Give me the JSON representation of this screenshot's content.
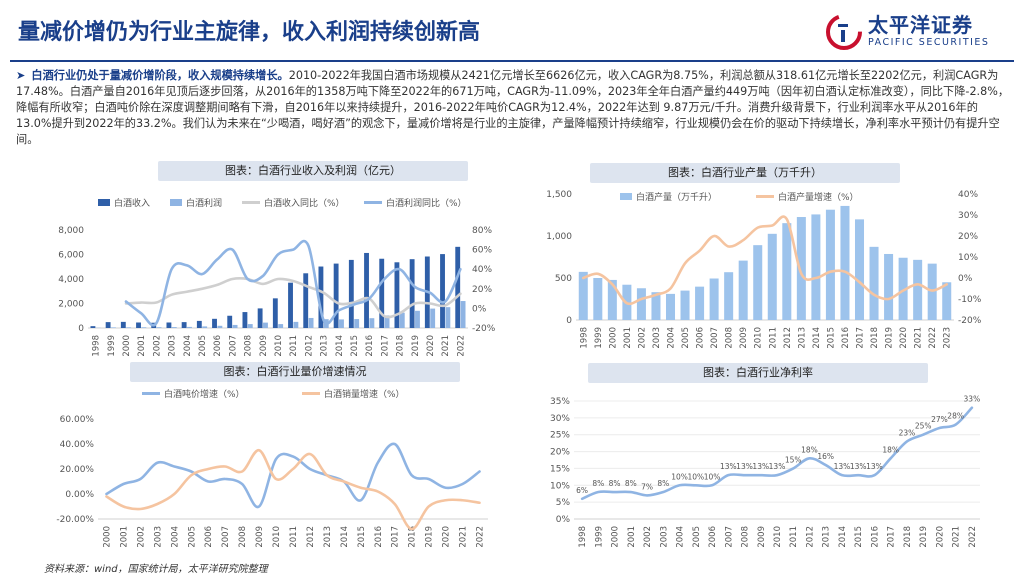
{
  "header": {
    "title": "量减价增仍为行业主旋律，收入利润持续创新高",
    "logo_cn": "太平洋证券",
    "logo_en": "PACIFIC SECURITIES"
  },
  "summary": {
    "lead": "白酒行业仍处于量减价增阶段，收入规模持续增长。",
    "body": "2010-2022年我国白酒市场规模从2421亿元增长至6626亿元，收入CAGR为8.75%，利润总额从318.61亿元增长至2202亿元，利润CAGR为17.48%。白酒产量自2016年见顶后逐步回落，从2016年的1358万吨下降至2022年的671万吨，CAGR为-11.09%，2023年全年白酒产量约449万吨（因年初白酒认定标准改变），同比下降-2.8%，降幅有所收窄；白酒吨价除在深度调整期间略有下滑，自2016年以来持续提升，2016-2022年吨价CAGR为12.4%，2022年达到 9.87万元/千升。消费升级背景下，行业利润率水平从2016年的13.0%提升到2022年的33.2%。我们认为未来在“少喝酒，喝好酒”的观念下，量减价增将是行业的主旋律，产量降幅预计持续缩窄，行业规模仍会在价的驱动下持续增长，净利率水平预计仍有提升空间。"
  },
  "captions": {
    "c1": "图表：白酒行业收入及利润（亿元）",
    "c2": "图表：白酒行业产量（万千升）",
    "c3": "图表：白酒行业量价增速情况",
    "c4": "图表：白酒行业净利率"
  },
  "source": "资料来源：wind，国家统计局，太平洋研究院整理",
  "colors": {
    "brand": "#1a3f8a",
    "revenue_bar": "#2f5fa8",
    "profit_bar": "#8fb4e3",
    "revenue_yoy": "#cfcfcf",
    "profit_yoy": "#8fb4e3",
    "output_bar": "#9dc3ec",
    "output_yoy": "#f5c4a0",
    "price_yoy": "#8fb4e3",
    "volume_yoy": "#f5c4a0",
    "margin_line": "#8fb4e3",
    "cap_bg": "#dde4ef"
  },
  "chart_data": [
    {
      "type": "bar",
      "title": "图表：白酒行业收入及利润（亿元）",
      "categories": [
        "1998",
        "1999",
        "2000",
        "2001",
        "2002",
        "2003",
        "2004",
        "2005",
        "2006",
        "2007",
        "2008",
        "2009",
        "2010",
        "2011",
        "2012",
        "2013",
        "2014",
        "2015",
        "2016",
        "2017",
        "2018",
        "2019",
        "2020",
        "2021",
        "2022"
      ],
      "series": [
        {
          "name": "白酒收入",
          "kind": "bar",
          "axis": "left",
          "values": [
            150,
            480,
            500,
            450,
            430,
            450,
            480,
            580,
            750,
            1000,
            1300,
            1600,
            2421,
            3700,
            4466,
            5018,
            5258,
            5559,
            6126,
            5654,
            5364,
            5618,
            5836,
            6033,
            6626
          ]
        },
        {
          "name": "白酒利润",
          "kind": "bar",
          "axis": "left",
          "values": [
            20,
            50,
            55,
            60,
            65,
            75,
            90,
            130,
            180,
            250,
            320,
            440,
            319,
            500,
            820,
            720,
            700,
            730,
            800,
            1028,
            1250,
            1404,
            1585,
            1701,
            2202
          ]
        },
        {
          "name": "白酒收入同比（%）",
          "kind": "line",
          "axis": "right",
          "values": [
            null,
            null,
            5,
            6,
            6,
            14,
            17,
            20,
            24,
            30,
            30,
            25,
            30,
            28,
            22,
            16,
            5,
            6,
            10,
            -8,
            -5,
            5,
            5,
            3,
            15
          ]
        },
        {
          "name": "白酒利润同比（%）",
          "kind": "line",
          "axis": "right",
          "values": [
            null,
            null,
            7,
            -5,
            -15,
            40,
            44,
            35,
            50,
            60,
            30,
            33,
            55,
            60,
            64,
            -12,
            -2,
            4,
            10,
            30,
            40,
            22,
            16,
            7,
            40
          ]
        }
      ],
      "ylim": [
        0,
        8000
      ],
      "ylim_right": [
        -20,
        80
      ],
      "yticks": [
        "0",
        "2,000",
        "4,000",
        "6,000",
        "8,000"
      ],
      "yticks_right": [
        "-20%",
        "0%",
        "20%",
        "40%",
        "60%",
        "80%"
      ],
      "legend": "top"
    },
    {
      "type": "bar",
      "title": "图表：白酒行业产量（万千升）",
      "categories": [
        "1998",
        "1999",
        "2000",
        "2001",
        "2002",
        "2003",
        "2004",
        "2005",
        "2006",
        "2007",
        "2008",
        "2009",
        "2010",
        "2011",
        "2012",
        "2013",
        "2014",
        "2015",
        "2016",
        "2017",
        "2018",
        "2019",
        "2020",
        "2021",
        "2022",
        "2023"
      ],
      "series": [
        {
          "name": "白酒产量（万千升）",
          "kind": "bar",
          "axis": "left",
          "values": [
            573,
            500,
            477,
            420,
            378,
            331,
            311,
            350,
            397,
            494,
            569,
            707,
            891,
            1026,
            1153,
            1226,
            1257,
            1313,
            1358,
            1198,
            871,
            786,
            741,
            716,
            671,
            449
          ]
        },
        {
          "name": "白酒产量增速（%）",
          "kind": "line",
          "axis": "right",
          "values": [
            0,
            2,
            -3,
            -12,
            -10,
            -8,
            -5,
            7,
            13,
            20,
            15,
            18,
            24,
            25,
            28,
            2,
            0,
            3,
            3,
            -2,
            -8,
            -10,
            -6,
            -3,
            -6,
            -3
          ]
        }
      ],
      "ylim": [
        0,
        1500
      ],
      "ylim_right": [
        -20,
        40
      ],
      "yticks": [
        "0",
        "500",
        "1,000",
        "1,500"
      ],
      "yticks_right": [
        "-20%",
        "-10%",
        "0%",
        "10%",
        "20%",
        "30%",
        "40%"
      ],
      "legend": "top"
    },
    {
      "type": "line",
      "title": "图表：白酒行业量价增速情况",
      "categories": [
        "2000",
        "2001",
        "2002",
        "2003",
        "2004",
        "2005",
        "2006",
        "2007",
        "2008",
        "2009",
        "2010",
        "2011",
        "2012",
        "2013",
        "2014",
        "2015",
        "2016",
        "2017",
        "2018",
        "2019",
        "2020",
        "2021",
        "2022"
      ],
      "series": [
        {
          "name": "白酒吨价增速（%）",
          "values": [
            0,
            8,
            12,
            25,
            22,
            18,
            10,
            12,
            8,
            -10,
            28,
            30,
            20,
            15,
            10,
            -5,
            25,
            40,
            15,
            12,
            5,
            8,
            18
          ]
        },
        {
          "name": "白酒销量增速（%）",
          "values": [
            -2,
            -10,
            -12,
            -8,
            0,
            15,
            20,
            22,
            18,
            35,
            12,
            20,
            32,
            15,
            10,
            5,
            2,
            -8,
            -28,
            -10,
            -5,
            -5,
            -7
          ]
        }
      ],
      "ylim": [
        -20,
        60
      ],
      "yticks": [
        "-20.00%",
        "0.00%",
        "20.00%",
        "40.00%",
        "60.00%"
      ],
      "legend": "top"
    },
    {
      "type": "line",
      "title": "图表：白酒行业净利率",
      "categories": [
        "1998",
        "1999",
        "2000",
        "2001",
        "2002",
        "2003",
        "2004",
        "2005",
        "2006",
        "2007",
        "2008",
        "2009",
        "2010",
        "2011",
        "2012",
        "2013",
        "2014",
        "2015",
        "2016",
        "2017",
        "2018",
        "2019",
        "2020",
        "2021",
        "2022"
      ],
      "series": [
        {
          "name": "白酒行业净利率",
          "values": [
            6,
            8,
            8,
            8,
            7,
            8,
            10,
            10,
            10,
            13,
            13,
            13,
            13,
            15,
            18,
            16,
            13,
            13,
            13,
            18,
            23,
            25,
            27,
            28,
            33
          ]
        }
      ],
      "data_labels": [
        "6%",
        "8%",
        "8%",
        "8%",
        "7%",
        "8%",
        "10%",
        "10%",
        "10%",
        "13%",
        "13%",
        "13%",
        "13%",
        "15%",
        "18%",
        "16%",
        "13%",
        "13%",
        "13%",
        "18%",
        "23%",
        "25%",
        "27%",
        "28%",
        "33%"
      ],
      "ylim": [
        0,
        35
      ],
      "yticks": [
        "0%",
        "5%",
        "10%",
        "15%",
        "20%",
        "25%",
        "30%",
        "35%"
      ]
    }
  ]
}
